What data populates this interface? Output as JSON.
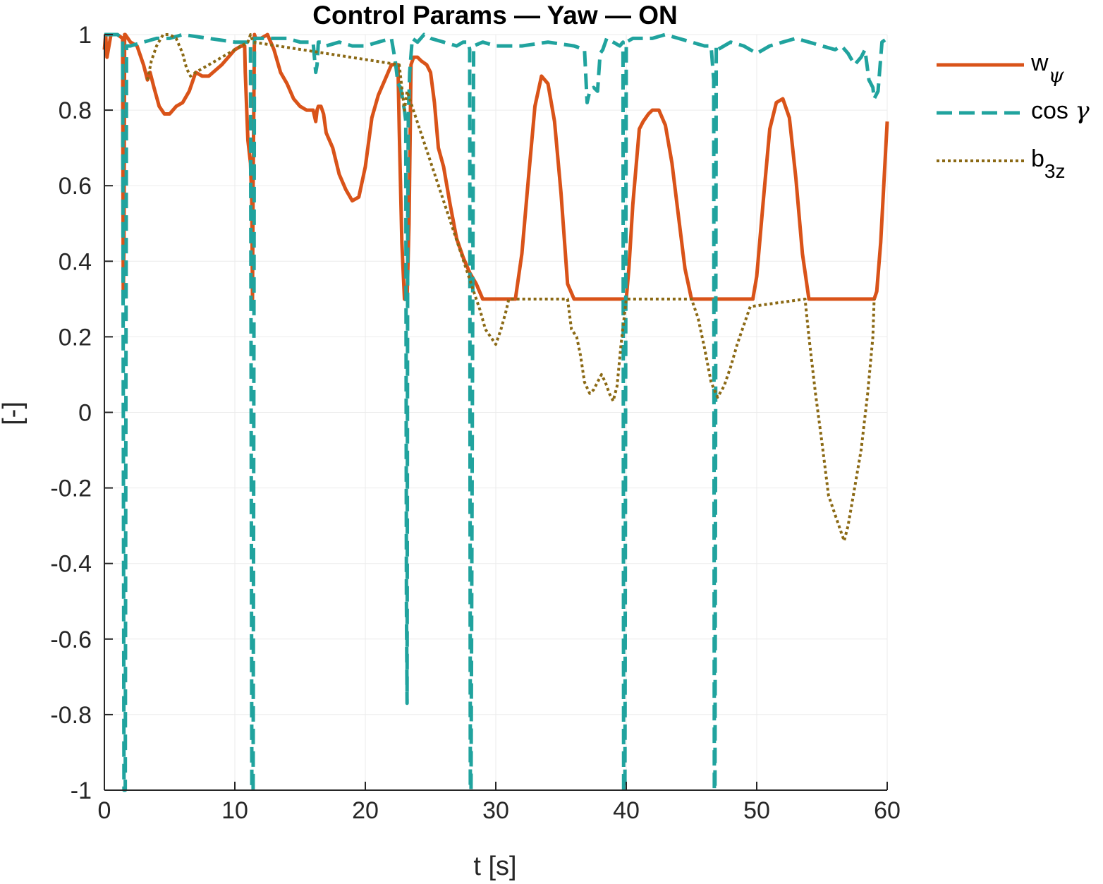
{
  "chart_data": {
    "type": "line",
    "title": "Control Params — Yaw — ON",
    "xlabel": "t [s]",
    "ylabel": "[-]",
    "xlim": [
      0,
      60
    ],
    "ylim": [
      -1,
      1
    ],
    "xticks": [
      0,
      10,
      20,
      30,
      40,
      50,
      60
    ],
    "yticks": [
      -1,
      -0.8,
      -0.6,
      -0.4,
      -0.2,
      0,
      0.2,
      0.4,
      0.6,
      0.8,
      1
    ],
    "xtick_labels": [
      "0",
      "10",
      "20",
      "30",
      "40",
      "50",
      "60"
    ],
    "ytick_labels": [
      "-1",
      "-0.8",
      "-0.6",
      "-0.4",
      "-0.2",
      "0",
      "0.2",
      "0.4",
      "0.6",
      "0.8",
      "1"
    ],
    "grid": true,
    "legend_position": "outside-right",
    "series": [
      {
        "name": "w_ψ",
        "legend_main": "w",
        "legend_sub": "ψ",
        "style": "solid",
        "color": "#D95319",
        "x": [
          0,
          0.1,
          0.2,
          0.5,
          1.0,
          1.4,
          1.45,
          1.5,
          1.55,
          1.6,
          2.0,
          2.5,
          3.0,
          3.3,
          3.5,
          3.8,
          4.2,
          4.6,
          5.0,
          5.5,
          6.0,
          6.5,
          6.8,
          7.0,
          7.5,
          8.0,
          9.0,
          10.0,
          10.5,
          10.7,
          10.75,
          10.8,
          11.0,
          11.2,
          11.3,
          11.35,
          11.4,
          11.5,
          11.6,
          12.0,
          12.5,
          13.0,
          13.5,
          14.0,
          14.5,
          15.0,
          15.5,
          16.0,
          16.2,
          16.3,
          16.4,
          16.6,
          16.8,
          17.0,
          17.5,
          18.0,
          18.5,
          19.0,
          19.5,
          20.0,
          20.5,
          21.0,
          21.5,
          22.0,
          22.5,
          22.6,
          22.8,
          23.0,
          23.2,
          23.35,
          23.5,
          23.7,
          24.0,
          24.3,
          24.7,
          25.0,
          25.3,
          25.6,
          26.0,
          26.5,
          27.0,
          27.5,
          28.0,
          28.5,
          29.0,
          30.0,
          31.0,
          31.5,
          32.0,
          32.5,
          33.0,
          33.5,
          34.0,
          34.5,
          35.0,
          35.5,
          36.0,
          37.0,
          38.0,
          39.0,
          40.0,
          40.2,
          40.5,
          41.0,
          41.3,
          41.7,
          42.0,
          42.5,
          43.0,
          43.5,
          44.0,
          44.5,
          45.0,
          46.0,
          47.0,
          48.0,
          49.0,
          49.7,
          50.0,
          50.5,
          51.0,
          51.5,
          52.0,
          52.5,
          53.0,
          53.5,
          54.0,
          55.0,
          56.0,
          57.0,
          58.0,
          59.0,
          59.2,
          59.5,
          60.0
        ],
        "y": [
          0.96,
          1.0,
          0.94,
          1.0,
          1.0,
          0.99,
          0.3,
          0.45,
          1.0,
          1.0,
          0.98,
          0.97,
          0.92,
          0.88,
          0.9,
          0.86,
          0.81,
          0.79,
          0.79,
          0.81,
          0.82,
          0.85,
          0.88,
          0.9,
          0.89,
          0.89,
          0.92,
          0.96,
          0.97,
          0.97,
          0.97,
          0.9,
          0.72,
          0.66,
          0.55,
          0.3,
          0.6,
          1.0,
          0.99,
          0.99,
          1.0,
          0.96,
          0.9,
          0.87,
          0.83,
          0.81,
          0.8,
          0.8,
          0.77,
          0.8,
          0.81,
          0.81,
          0.79,
          0.74,
          0.7,
          0.63,
          0.59,
          0.56,
          0.57,
          0.65,
          0.78,
          0.84,
          0.88,
          0.92,
          0.92,
          0.75,
          0.45,
          0.3,
          0.3,
          0.5,
          0.92,
          0.94,
          0.94,
          0.93,
          0.92,
          0.9,
          0.82,
          0.7,
          0.65,
          0.55,
          0.46,
          0.41,
          0.37,
          0.34,
          0.3,
          0.3,
          0.3,
          0.3,
          0.42,
          0.62,
          0.81,
          0.89,
          0.87,
          0.77,
          0.58,
          0.34,
          0.3,
          0.3,
          0.3,
          0.3,
          0.3,
          0.38,
          0.55,
          0.75,
          0.77,
          0.79,
          0.8,
          0.8,
          0.76,
          0.66,
          0.52,
          0.38,
          0.3,
          0.3,
          0.3,
          0.3,
          0.3,
          0.3,
          0.36,
          0.56,
          0.75,
          0.82,
          0.83,
          0.78,
          0.62,
          0.42,
          0.3,
          0.3,
          0.3,
          0.3,
          0.3,
          0.3,
          0.32,
          0.45,
          0.77
        ]
      },
      {
        "name": "cos γ",
        "legend_main": "cos ",
        "legend_sub": "",
        "legend_greek": "γ",
        "style": "dashed",
        "color": "#20A39E",
        "x": [
          0,
          1.0,
          1.4,
          1.5,
          1.6,
          1.7,
          2.0,
          3.0,
          4.0,
          5.0,
          6.0,
          8.0,
          10.0,
          11.0,
          11.2,
          11.3,
          11.4,
          11.5,
          11.6,
          12.0,
          14.0,
          15.0,
          16.0,
          16.2,
          16.3,
          16.4,
          16.6,
          17.0,
          18.0,
          19.0,
          20.0,
          21.0,
          22.0,
          22.3,
          22.5,
          22.7,
          23.0,
          23.1,
          23.15,
          23.2,
          23.25,
          23.3,
          23.4,
          23.6,
          24.0,
          24.5,
          25.0,
          26.0,
          27.0,
          27.5,
          27.9,
          28.0,
          28.05,
          28.1,
          28.3,
          29.0,
          30.0,
          32.0,
          34.0,
          36.0,
          36.8,
          37.0,
          37.2,
          37.5,
          37.8,
          38.0,
          38.2,
          38.5,
          39.0,
          39.5,
          39.75,
          39.8,
          39.9,
          40.0,
          40.5,
          41.0,
          42.0,
          43.0,
          44.0,
          45.0,
          46.0,
          46.5,
          46.7,
          46.75,
          46.8,
          46.9,
          47.0,
          48.0,
          49.0,
          49.5,
          50.0,
          51.0,
          52.0,
          53.0,
          54.0,
          55.0,
          56.0,
          56.5,
          57.0,
          57.5,
          58.0,
          58.3,
          58.6,
          58.9,
          59.0,
          59.3,
          59.6,
          60.0
        ],
        "y": [
          1.0,
          1.0,
          0.99,
          -1.0,
          -1.0,
          0.97,
          0.97,
          0.98,
          0.99,
          0.99,
          1.0,
          0.99,
          0.98,
          0.98,
          0.98,
          -1.0,
          -1.0,
          0.99,
          0.99,
          0.99,
          0.99,
          0.98,
          0.98,
          0.9,
          0.92,
          0.98,
          0.98,
          0.97,
          0.98,
          0.97,
          0.97,
          0.98,
          0.99,
          0.93,
          0.87,
          0.86,
          0.8,
          0.77,
          -0.5,
          -0.77,
          0.5,
          0.78,
          0.9,
          0.99,
          0.98,
          1.0,
          0.99,
          0.98,
          0.97,
          0.98,
          0.98,
          0.96,
          -1.0,
          -1.0,
          0.97,
          0.98,
          0.97,
          0.97,
          0.98,
          0.97,
          0.96,
          0.82,
          0.85,
          0.86,
          0.85,
          0.95,
          0.96,
          0.99,
          0.98,
          0.97,
          0.98,
          -1.0,
          -1.0,
          0.98,
          0.99,
          0.99,
          0.99,
          1.0,
          0.99,
          0.98,
          0.97,
          0.97,
          0.88,
          -1.0,
          -1.0,
          0.97,
          0.96,
          0.98,
          0.97,
          0.96,
          0.95,
          0.97,
          0.98,
          0.99,
          0.98,
          0.97,
          0.96,
          0.97,
          0.95,
          0.92,
          0.94,
          0.96,
          0.88,
          0.86,
          0.83,
          0.85,
          0.98,
          0.99
        ]
      },
      {
        "name": "b_3z",
        "legend_main": "b",
        "legend_sub": "3z",
        "style": "dotted",
        "color": "#8B6914",
        "x": [
          3.3,
          3.6,
          4.0,
          4.5,
          5.0,
          5.5,
          6.0,
          6.3,
          6.6,
          7.0,
          11.0,
          11.2,
          11.3,
          11.4,
          22.6,
          22.8,
          23.0,
          23.2,
          28.5,
          28.8,
          29.2,
          29.6,
          30.0,
          30.4,
          30.8,
          31.0,
          35.5,
          35.8,
          36.2,
          36.5,
          36.8,
          37.2,
          37.5,
          37.8,
          38.1,
          38.4,
          38.7,
          39.0,
          39.3,
          39.6,
          40.0,
          45.0,
          45.5,
          46.0,
          46.5,
          47.0,
          47.5,
          48.0,
          48.5,
          49.0,
          49.5,
          53.7,
          54.0,
          54.5,
          55.0,
          55.5,
          56.0,
          56.3,
          56.7,
          57.0,
          57.5,
          58.0,
          58.5,
          58.9,
          59.0
        ],
        "y": [
          0.88,
          0.93,
          0.97,
          1.0,
          1.0,
          0.99,
          0.95,
          0.91,
          0.89,
          0.9,
          0.98,
          1.0,
          0.99,
          0.98,
          0.92,
          0.86,
          0.8,
          0.85,
          0.3,
          0.27,
          0.22,
          0.2,
          0.18,
          0.22,
          0.27,
          0.3,
          0.3,
          0.22,
          0.2,
          0.15,
          0.08,
          0.05,
          0.06,
          0.08,
          0.1,
          0.08,
          0.05,
          0.03,
          0.07,
          0.18,
          0.3,
          0.3,
          0.25,
          0.17,
          0.08,
          0.04,
          0.07,
          0.12,
          0.18,
          0.23,
          0.28,
          0.3,
          0.2,
          0.05,
          -0.08,
          -0.22,
          -0.27,
          -0.3,
          -0.34,
          -0.3,
          -0.2,
          -0.1,
          0.05,
          0.2,
          0.3
        ]
      }
    ]
  }
}
